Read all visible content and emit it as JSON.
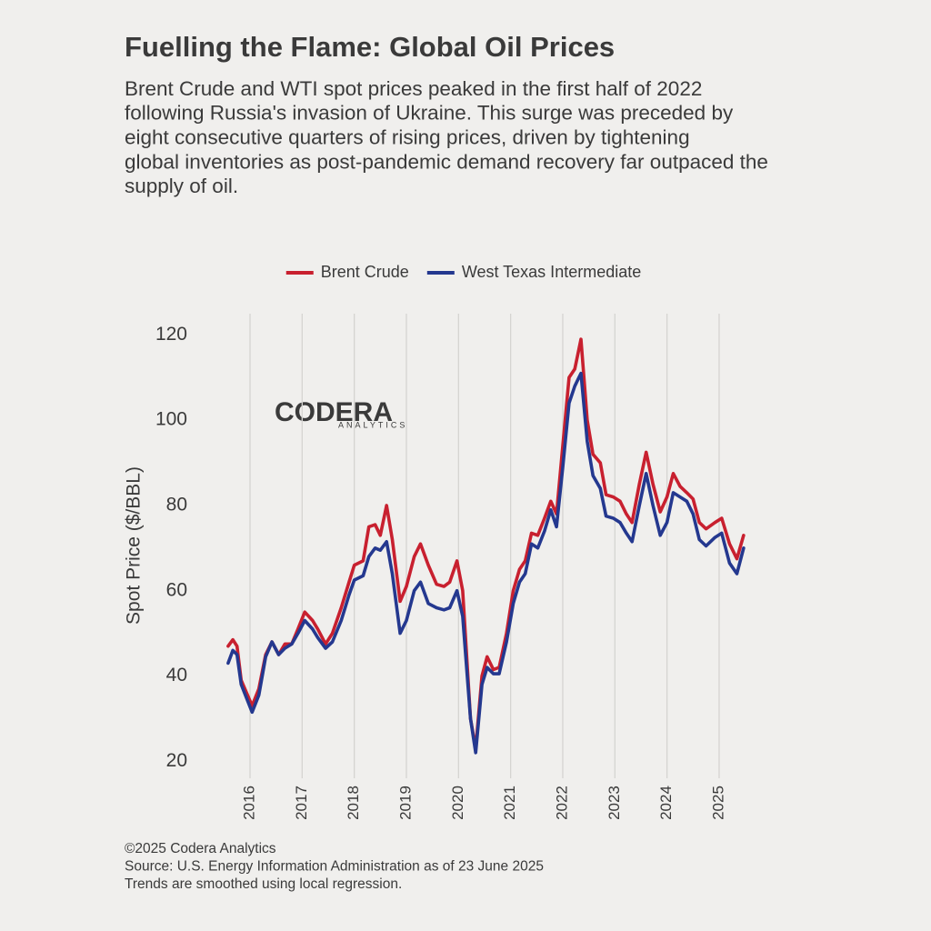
{
  "chart_data": {
    "type": "line",
    "title": "Fuelling the Flame: Global Oil Prices",
    "subtitle": [
      "Brent Crude and WTI spot prices peaked in the first half of 2022",
      "following Russia's invasion of Ukraine. This surge was preceded by",
      "eight consecutive quarters of rising prices, driven by tightening",
      "global inventories as post-pandemic demand recovery far outpaced the",
      "supply of oil."
    ],
    "y_label": "Spot Price ($/BBL)",
    "watermark": [
      "CODERA",
      "ANALYTICS"
    ],
    "notes": [
      "©2025 Codera Analytics",
      "Source: U.S. Energy Information Administration as of 23 June 2025",
      "Trends are smoothed using local regression."
    ],
    "x": [
      2015.58,
      2015.67,
      2015.75,
      2015.83,
      2016.04,
      2016.17,
      2016.3,
      2016.42,
      2016.55,
      2016.67,
      2016.8,
      2016.92,
      2017.05,
      2017.2,
      2017.3,
      2017.45,
      2017.58,
      2017.75,
      2017.9,
      2018.0,
      2018.17,
      2018.28,
      2018.4,
      2018.5,
      2018.62,
      2018.73,
      2018.88,
      2019.0,
      2019.15,
      2019.27,
      2019.42,
      2019.58,
      2019.72,
      2019.83,
      2019.97,
      2020.08,
      2020.23,
      2020.33,
      2020.45,
      2020.55,
      2020.67,
      2020.78,
      2020.92,
      2021.05,
      2021.17,
      2021.28,
      2021.4,
      2021.52,
      2021.65,
      2021.77,
      2021.88,
      2022.0,
      2022.12,
      2022.23,
      2022.35,
      2022.47,
      2022.58,
      2022.72,
      2022.83,
      2022.97,
      2023.1,
      2023.22,
      2023.33,
      2023.47,
      2023.6,
      2023.73,
      2023.87,
      2024.0,
      2024.12,
      2024.25,
      2024.38,
      2024.5,
      2024.62,
      2024.75,
      2024.92,
      2025.05,
      2025.2,
      2025.34,
      2025.47
    ],
    "series": [
      {
        "name": "Brent Crude",
        "color": "#c8202f",
        "values": [
          47,
          48.5,
          47,
          39,
          33,
          37,
          45,
          48,
          45,
          47.5,
          47.5,
          51,
          55,
          53,
          51,
          47.5,
          50,
          56,
          62,
          66,
          67,
          75,
          75.5,
          73,
          80,
          72,
          57.5,
          61,
          68,
          71,
          66,
          61.5,
          61,
          62,
          67,
          60,
          30,
          23,
          40,
          44.5,
          41.5,
          42,
          50,
          60,
          65,
          67,
          73.5,
          73,
          77,
          81,
          78,
          94,
          110,
          112,
          119,
          100,
          92,
          90,
          82.5,
          82,
          81,
          78,
          76,
          85,
          92.5,
          85,
          78.5,
          82,
          87.5,
          84.5,
          83,
          81.5,
          76,
          74.5,
          76,
          77,
          71,
          67.5,
          73
        ]
      },
      {
        "name": "West Texas Intermediate",
        "color": "#24388f",
        "values": [
          43,
          46,
          45,
          38,
          31.5,
          35.5,
          44.5,
          48,
          45,
          46.5,
          47.5,
          50,
          53,
          51,
          49,
          46.5,
          48,
          53,
          59,
          62.5,
          63.5,
          68,
          70,
          69.5,
          71.5,
          64,
          50,
          53,
          60,
          62,
          57,
          56,
          55.5,
          56,
          60,
          54,
          30,
          22,
          38,
          42,
          40.5,
          40.5,
          48,
          57,
          62,
          64,
          71,
          70,
          74,
          79,
          75,
          89,
          104,
          108,
          111,
          95,
          87,
          84,
          77.5,
          77,
          76,
          73.5,
          71.5,
          80,
          87.5,
          80,
          73,
          76,
          83,
          82,
          81,
          78,
          72,
          70.5,
          72.5,
          73.5,
          66.5,
          64,
          70
        ]
      }
    ],
    "xlim": [
      2015.4,
      2025.66
    ],
    "xticks": [
      2016,
      2017,
      2018,
      2019,
      2020,
      2021,
      2022,
      2023,
      2024,
      2025
    ],
    "ylim": [
      16,
      125
    ],
    "yticks": [
      20,
      40,
      60,
      80,
      100,
      120
    ],
    "grid": "x",
    "legend": "top"
  }
}
